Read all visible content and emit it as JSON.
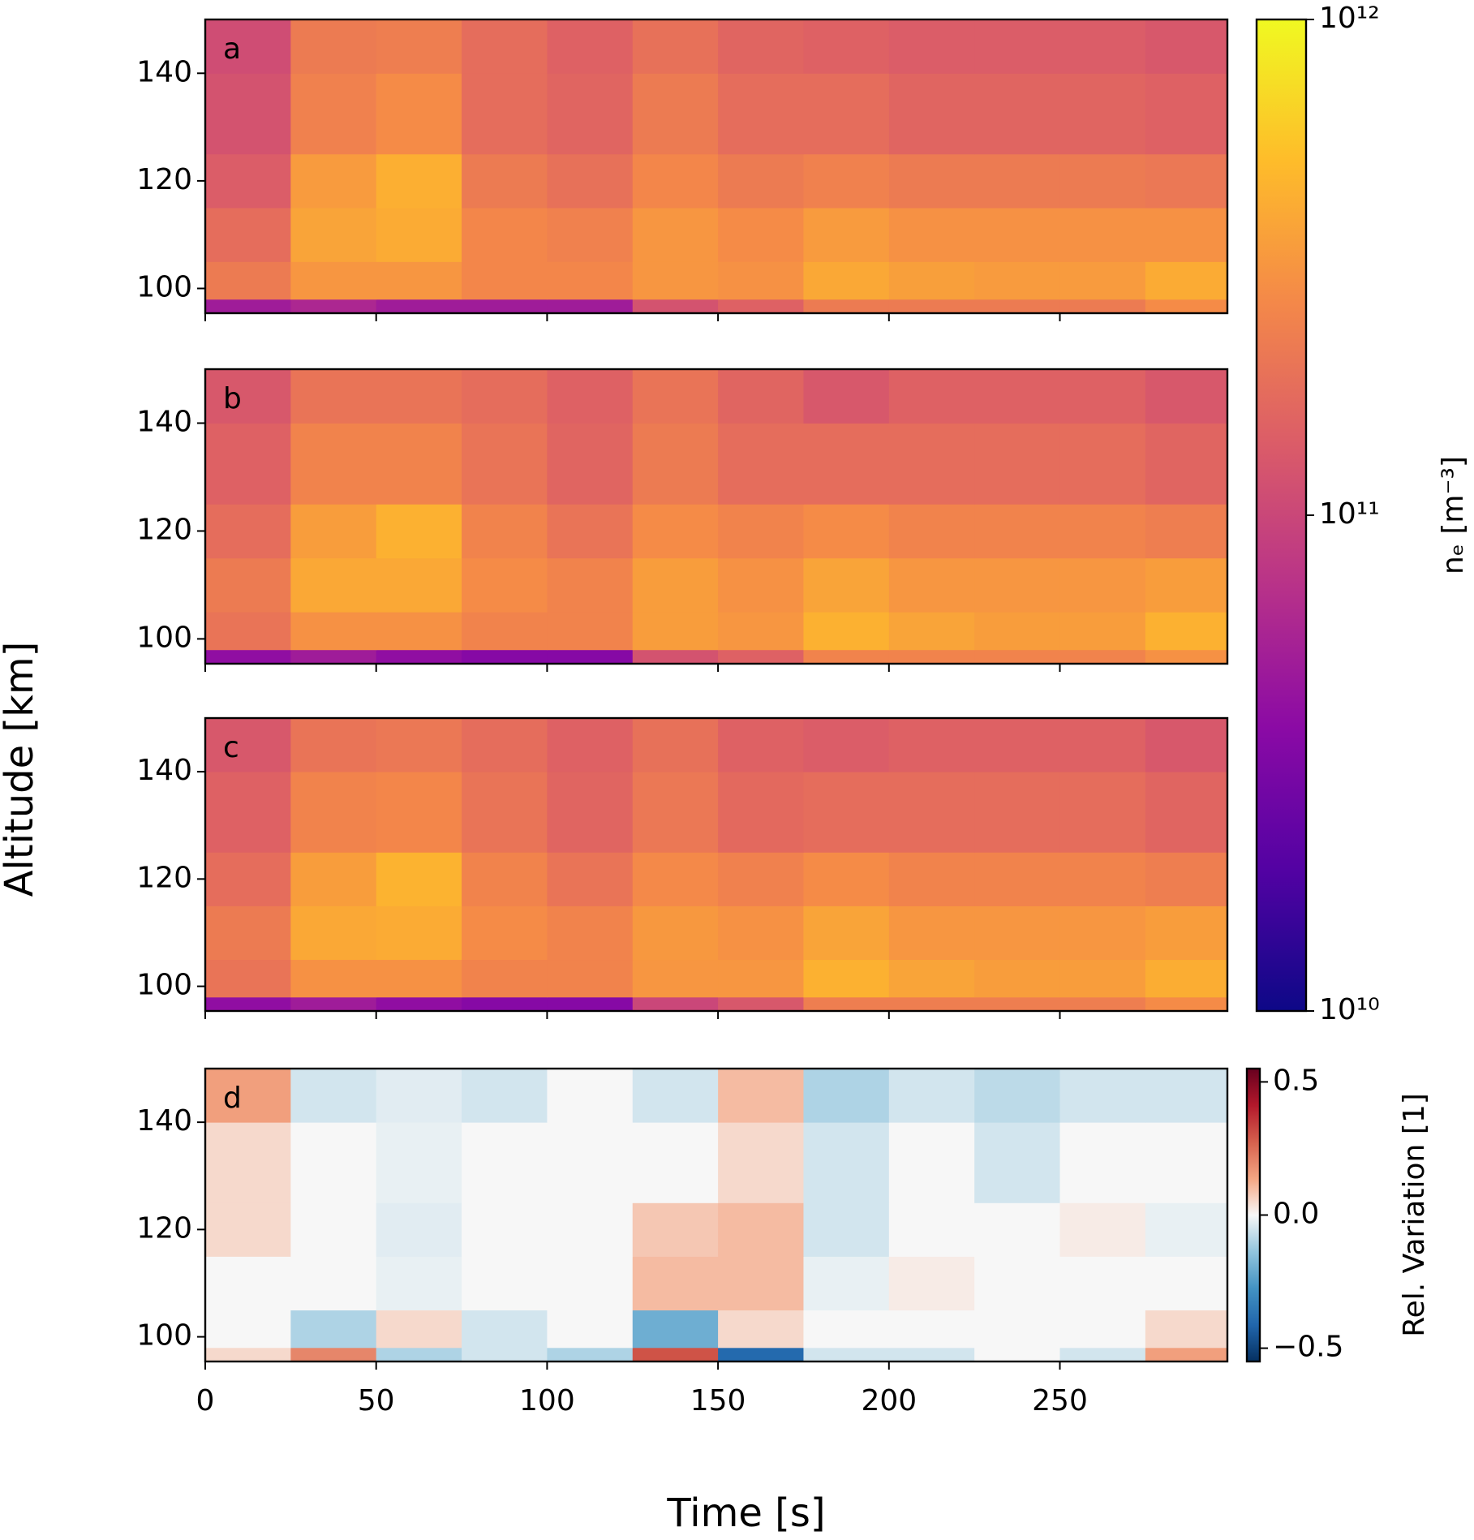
{
  "chart_data": {
    "type": "heatmap",
    "xlabel": "Time [s]",
    "ylabel": "Altitude [km]",
    "xlim": [
      0,
      299
    ],
    "xticks": [
      0,
      50,
      100,
      150,
      200,
      250
    ],
    "ylim": [
      95.4,
      150
    ],
    "yticks": [
      100,
      120,
      140
    ],
    "xbins": [
      0,
      25,
      50,
      75,
      100,
      125,
      150,
      175,
      200,
      225,
      250,
      275,
      299
    ],
    "ybins": [
      95.4,
      98,
      105,
      115,
      125,
      140,
      150
    ],
    "panels": [
      {
        "label": "a",
        "colorbar": 0,
        "z": [
          [
            50000000000.0,
            60000000000.0,
            50000000000.0,
            50000000000.0,
            50000000000.0,
            120000000000.0,
            150000000000.0,
            220000000000.0,
            220000000000.0,
            220000000000.0,
            220000000000.0,
            280000000000.0
          ],
          [
            220000000000.0,
            320000000000.0,
            320000000000.0,
            260000000000.0,
            260000000000.0,
            320000000000.0,
            300000000000.0,
            400000000000.0,
            360000000000.0,
            340000000000.0,
            340000000000.0,
            420000000000.0
          ],
          [
            180000000000.0,
            380000000000.0,
            420000000000.0,
            260000000000.0,
            240000000000.0,
            320000000000.0,
            280000000000.0,
            340000000000.0,
            300000000000.0,
            300000000000.0,
            300000000000.0,
            300000000000.0
          ],
          [
            140000000000.0,
            340000000000.0,
            440000000000.0,
            220000000000.0,
            190000000000.0,
            260000000000.0,
            220000000000.0,
            240000000000.0,
            220000000000.0,
            220000000000.0,
            220000000000.0,
            210000000000.0
          ],
          [
            120000000000.0,
            240000000000.0,
            280000000000.0,
            180000000000.0,
            160000000000.0,
            220000000000.0,
            180000000000.0,
            180000000000.0,
            160000000000.0,
            160000000000.0,
            160000000000.0,
            150000000000.0
          ],
          [
            110000000000.0,
            220000000000.0,
            230000000000.0,
            180000000000.0,
            150000000000.0,
            190000000000.0,
            160000000000.0,
            150000000000.0,
            140000000000.0,
            140000000000.0,
            140000000000.0,
            130000000000.0
          ]
        ]
      },
      {
        "label": "b",
        "colorbar": 0,
        "z": [
          [
            40000000000.0,
            50000000000.0,
            40000000000.0,
            35000000000.0,
            35000000000.0,
            120000000000.0,
            150000000000.0,
            250000000000.0,
            250000000000.0,
            250000000000.0,
            250000000000.0,
            300000000000.0
          ],
          [
            200000000000.0,
            300000000000.0,
            300000000000.0,
            250000000000.0,
            250000000000.0,
            350000000000.0,
            320000000000.0,
            450000000000.0,
            380000000000.0,
            350000000000.0,
            350000000000.0,
            450000000000.0
          ],
          [
            220000000000.0,
            400000000000.0,
            400000000000.0,
            280000000000.0,
            250000000000.0,
            350000000000.0,
            300000000000.0,
            380000000000.0,
            320000000000.0,
            320000000000.0,
            320000000000.0,
            350000000000.0
          ],
          [
            180000000000.0,
            350000000000.0,
            450000000000.0,
            250000000000.0,
            200000000000.0,
            280000000000.0,
            250000000000.0,
            280000000000.0,
            250000000000.0,
            250000000000.0,
            250000000000.0,
            230000000000.0
          ],
          [
            150000000000.0,
            250000000000.0,
            250000000000.0,
            200000000000.0,
            160000000000.0,
            220000000000.0,
            180000000000.0,
            180000000000.0,
            180000000000.0,
            180000000000.0,
            180000000000.0,
            160000000000.0
          ],
          [
            130000000000.0,
            200000000000.0,
            200000000000.0,
            180000000000.0,
            150000000000.0,
            200000000000.0,
            160000000000.0,
            130000000000.0,
            150000000000.0,
            150000000000.0,
            150000000000.0,
            130000000000.0
          ]
        ]
      },
      {
        "label": "c",
        "colorbar": 0,
        "z": [
          [
            40000000000.0,
            50000000000.0,
            40000000000.0,
            35000000000.0,
            35000000000.0,
            100000000000.0,
            130000000000.0,
            230000000000.0,
            230000000000.0,
            230000000000.0,
            230000000000.0,
            280000000000.0
          ],
          [
            200000000000.0,
            300000000000.0,
            300000000000.0,
            250000000000.0,
            250000000000.0,
            320000000000.0,
            320000000000.0,
            450000000000.0,
            380000000000.0,
            350000000000.0,
            350000000000.0,
            430000000000.0
          ],
          [
            220000000000.0,
            400000000000.0,
            420000000000.0,
            280000000000.0,
            250000000000.0,
            330000000000.0,
            300000000000.0,
            380000000000.0,
            320000000000.0,
            320000000000.0,
            320000000000.0,
            350000000000.0
          ],
          [
            180000000000.0,
            350000000000.0,
            460000000000.0,
            250000000000.0,
            200000000000.0,
            270000000000.0,
            240000000000.0,
            280000000000.0,
            250000000000.0,
            250000000000.0,
            250000000000.0,
            230000000000.0
          ],
          [
            150000000000.0,
            250000000000.0,
            260000000000.0,
            200000000000.0,
            160000000000.0,
            210000000000.0,
            170000000000.0,
            180000000000.0,
            180000000000.0,
            180000000000.0,
            180000000000.0,
            160000000000.0
          ],
          [
            130000000000.0,
            200000000000.0,
            210000000000.0,
            180000000000.0,
            150000000000.0,
            190000000000.0,
            150000000000.0,
            140000000000.0,
            150000000000.0,
            150000000000.0,
            150000000000.0,
            130000000000.0
          ]
        ]
      },
      {
        "label": "d",
        "colorbar": 1,
        "z": [
          [
            0.05,
            0.2,
            -0.1,
            -0.05,
            -0.1,
            0.3,
            -0.4,
            -0.05,
            -0.05,
            0,
            -0.05,
            0.15
          ],
          [
            0,
            -0.1,
            0.05,
            -0.05,
            0,
            -0.2,
            0.05,
            0,
            0,
            0,
            0,
            0.05
          ],
          [
            0,
            0,
            -0.02,
            0,
            0,
            0.1,
            0.1,
            -0.02,
            0.02,
            0,
            0,
            0
          ],
          [
            0.05,
            0,
            -0.03,
            0,
            0,
            0.08,
            0.1,
            -0.05,
            0,
            0,
            0.02,
            -0.02
          ],
          [
            0.05,
            0,
            -0.02,
            0,
            0,
            0,
            0.05,
            -0.05,
            0,
            -0.05,
            0,
            0
          ],
          [
            0.15,
            -0.05,
            -0.03,
            -0.05,
            0,
            -0.05,
            0.1,
            -0.1,
            -0.05,
            -0.08,
            -0.05,
            -0.05
          ]
        ]
      }
    ],
    "colorbars": [
      {
        "label": "nₑ [m⁻³]",
        "cmap": "plasma",
        "log": true,
        "lim": [
          10000000000.0,
          1000000000000.0
        ],
        "ticks": [
          {
            "value": 10000000000.0,
            "label": "10¹⁰"
          },
          {
            "value": 100000000000.0,
            "label": "10¹¹"
          },
          {
            "value": 1000000000000.0,
            "label": "10¹²"
          }
        ]
      },
      {
        "label": "Rel. Variation [1]",
        "cmap": "RdBu_r",
        "log": false,
        "lim": [
          -0.55,
          0.55
        ],
        "ticks": [
          {
            "value": -0.5,
            "label": "−0.5"
          },
          {
            "value": 0,
            "label": "0.0"
          },
          0.5
        ]
      }
    ]
  }
}
